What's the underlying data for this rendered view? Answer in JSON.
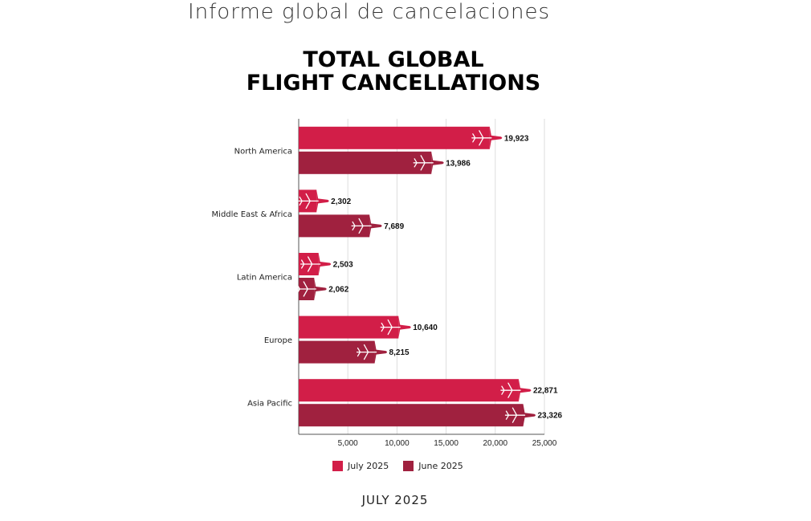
{
  "header": {
    "text": "Informe global de cancelaciones"
  },
  "footer": {
    "text": "JULY 2025"
  },
  "colors": {
    "july": "#d21e48",
    "june": "#a0213f",
    "grid": "#dddddd",
    "axis": "#555555"
  },
  "icons": {
    "bar_end": "airplane-icon"
  },
  "chart_data": {
    "type": "bar",
    "orientation": "horizontal",
    "title_line1": "TOTAL GLOBAL",
    "title_line2": "FLIGHT CANCELLATIONS",
    "categories": [
      "North America",
      "Middle East & Africa",
      "Latin America",
      "Europe",
      "Asia Pacific"
    ],
    "series": [
      {
        "name": "July 2025",
        "values": [
          19923,
          2302,
          2503,
          10640,
          22871
        ]
      },
      {
        "name": "June 2025",
        "values": [
          13986,
          7689,
          2062,
          8215,
          23326
        ]
      }
    ],
    "value_labels": {
      "July 2025": [
        "19,923",
        "2,302",
        "2,503",
        "10,640",
        "22,871"
      ],
      "June 2025": [
        "13,986",
        "7,689",
        "2,062",
        "8,215",
        "23,326"
      ]
    },
    "xlim": [
      0,
      25000
    ],
    "xticks": [
      5000,
      10000,
      15000,
      20000,
      25000
    ],
    "xtick_labels": [
      "5,000",
      "10,000",
      "15,000",
      "20,000",
      "25,000"
    ],
    "grid": true,
    "legend_position": "bottom"
  }
}
